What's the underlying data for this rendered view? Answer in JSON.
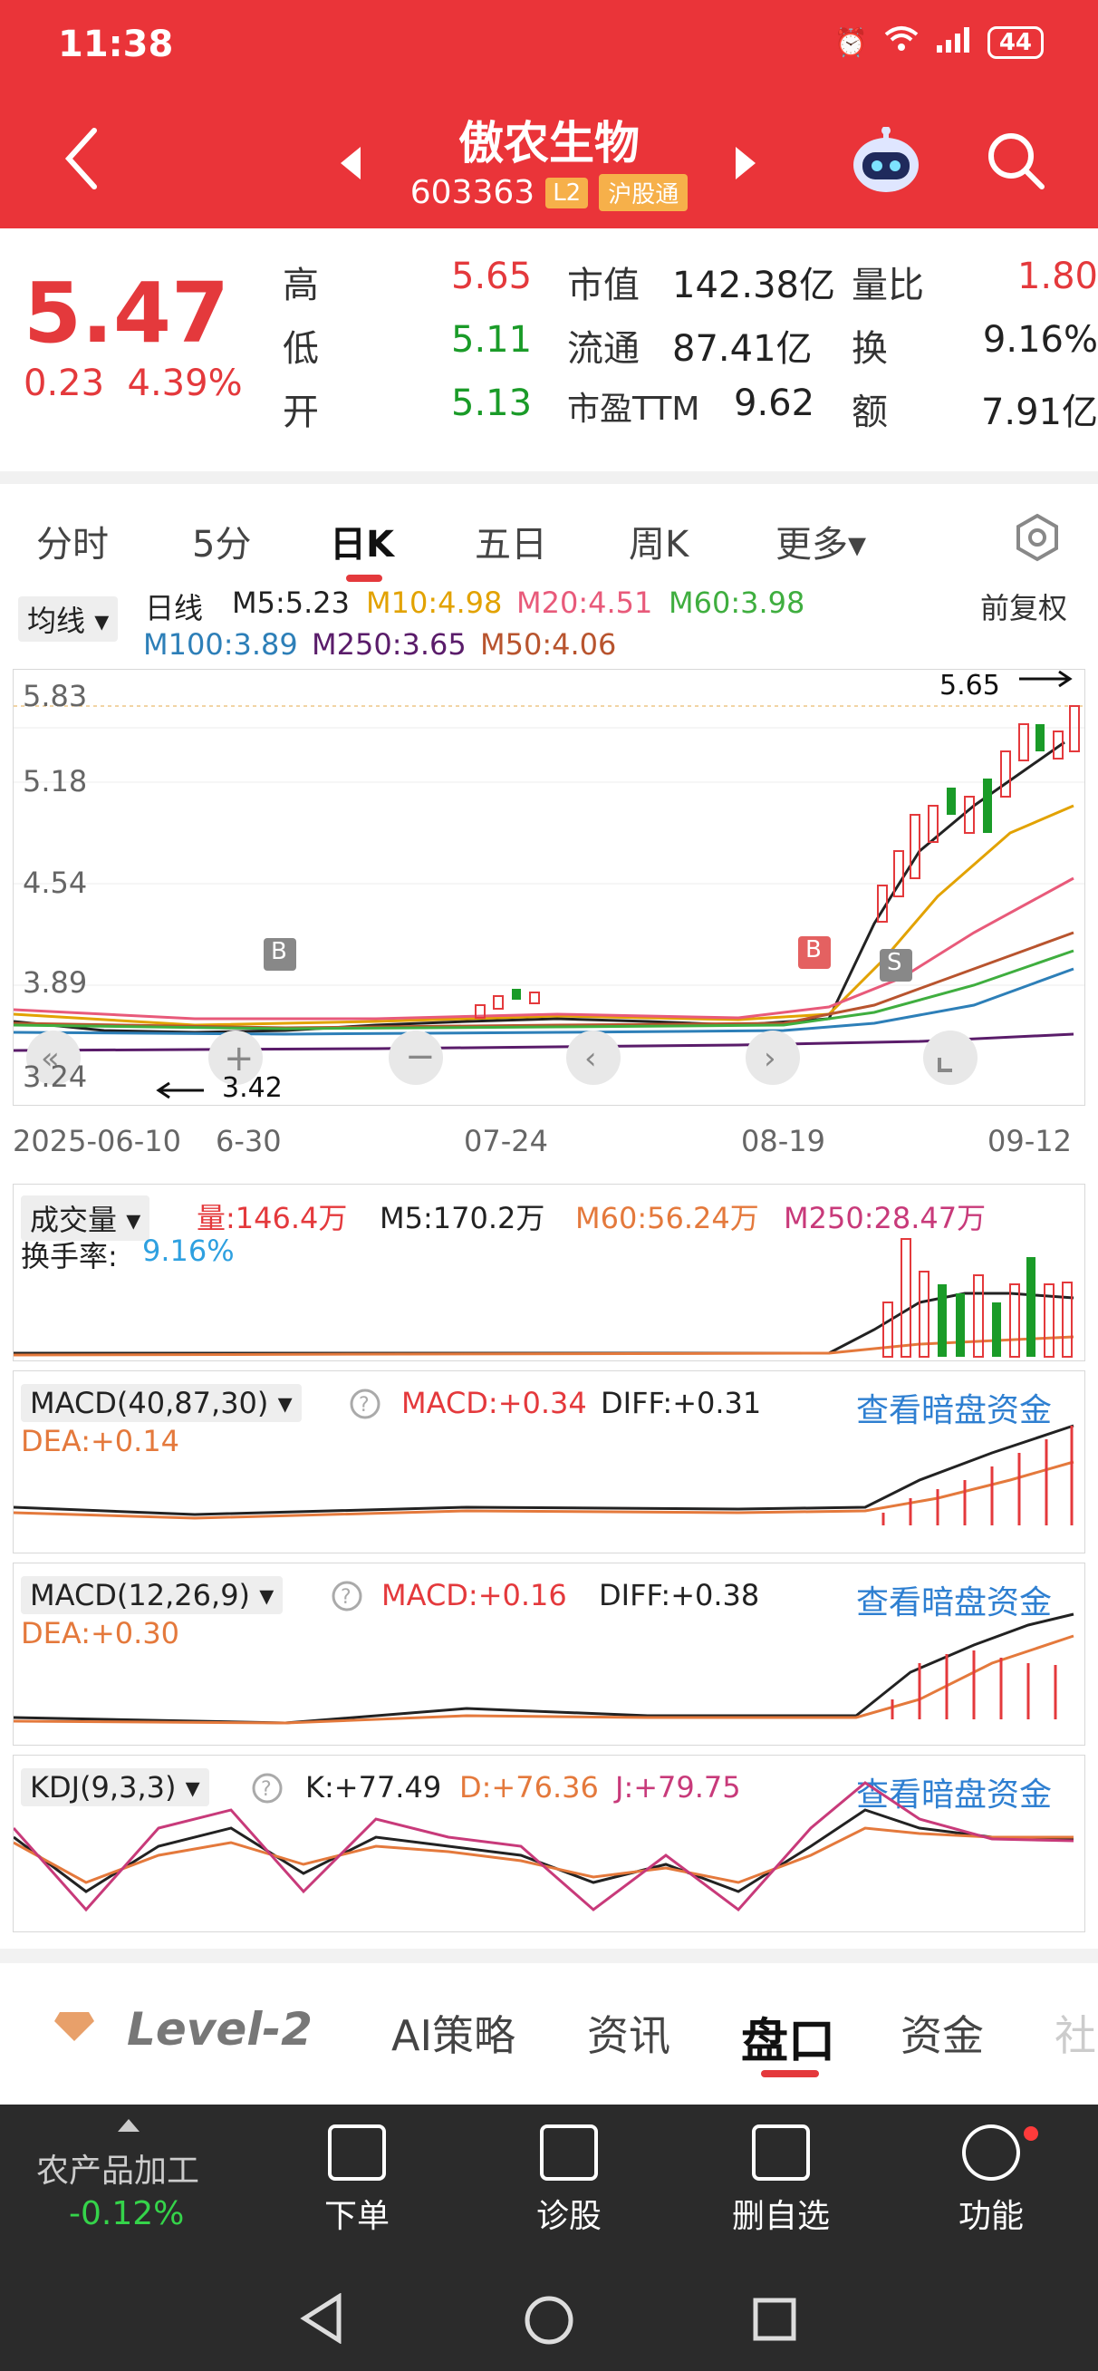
{
  "status": {
    "time": "11:38",
    "battery": "44"
  },
  "header": {
    "name": "傲农生物",
    "code": "603363",
    "badge_l2": "L2",
    "badge_hgt": "沪股通"
  },
  "quote": {
    "price": "5.47",
    "change": "0.23",
    "change_pct": "4.39%",
    "rows": [
      {
        "l1": "高",
        "v1": "5.65",
        "c1": "red",
        "l2": "市值",
        "v2": "142.38亿",
        "l3": "量比",
        "v3": "1.80",
        "c3": "red"
      },
      {
        "l1": "低",
        "v1": "5.11",
        "c1": "green",
        "l2": "流通",
        "v2": "87.41亿",
        "l3": "换",
        "v3": "9.16%",
        "c3": "dark"
      },
      {
        "l1": "开",
        "v1": "5.13",
        "c1": "green",
        "l2": "市盈TTM",
        "v2": "9.62",
        "l3": "额",
        "v3": "7.91亿",
        "c3": "dark"
      }
    ]
  },
  "tabs": [
    "分时",
    "5分",
    "日K",
    "五日",
    "周K",
    "更多▾"
  ],
  "active_tab": "日K",
  "kline": {
    "ma_btn": "均线",
    "period": "日线",
    "ma": [
      {
        "label": "M5:5.23",
        "color": "#222222"
      },
      {
        "label": "M10:4.98",
        "color": "#e2a200"
      },
      {
        "label": "M20:4.51",
        "color": "#e85a7a"
      },
      {
        "label": "M60:3.98",
        "color": "#3fae3f"
      },
      {
        "label": "M100:3.89",
        "color": "#2d7fb8"
      },
      {
        "label": "M250:3.65",
        "color": "#5a1c6a"
      },
      {
        "label": "M50:4.06",
        "color": "#b8542e"
      }
    ],
    "adjust": "前复权",
    "y_ticks": [
      "5.83",
      "5.18",
      "4.54",
      "3.89",
      "3.24"
    ],
    "high_label": "5.65",
    "low_label": "3.42",
    "dates": [
      "2025-06-10",
      "6-30",
      "07-24",
      "08-19",
      "09-12"
    ],
    "mark_b": "B",
    "mark_s": "S"
  },
  "volume": {
    "btn": "成交量",
    "vol": "量:146.4万",
    "m5": "M5:170.2万",
    "m60": "M60:56.24万",
    "m250": "M250:28.47万",
    "turnover_label": "换手率:",
    "turnover_value": "9.16%"
  },
  "macd1": {
    "btn": "MACD(40,87,30)",
    "macd": "MACD:+0.34",
    "diff": "DIFF:+0.31",
    "dea": "DEA:+0.14",
    "link": "查看暗盘资金"
  },
  "macd2": {
    "btn": "MACD(12,26,9)",
    "macd": "MACD:+0.16",
    "diff": "DIFF:+0.38",
    "dea": "DEA:+0.30",
    "link": "查看暗盘资金"
  },
  "kdj": {
    "btn": "KDJ(9,3,3)",
    "k": "K:+77.49",
    "d": "D:+76.36",
    "j": "J:+79.75",
    "link": "查看暗盘资金"
  },
  "bottom_tabs": [
    "Level-2",
    "AI策略",
    "资讯",
    "盘口",
    "资金",
    "社"
  ],
  "active_bottom": "盘口",
  "sector": {
    "name": "农产品加工",
    "change": "-0.12%"
  },
  "actions": [
    "下单",
    "诊股",
    "删自选",
    "功能"
  ]
}
